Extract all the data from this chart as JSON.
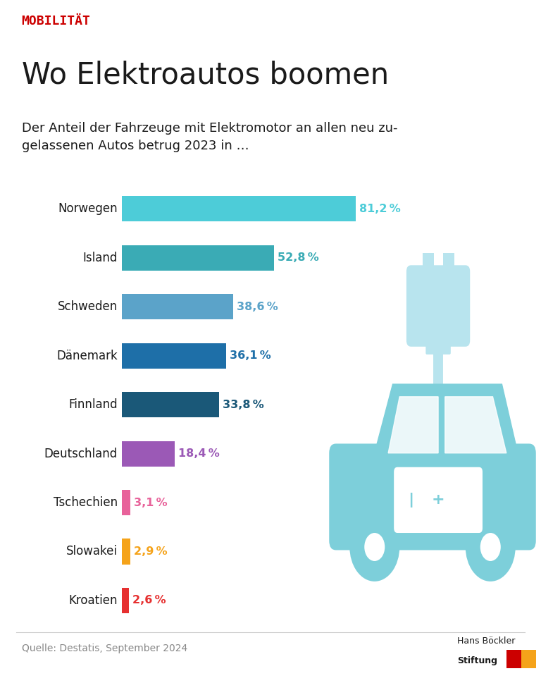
{
  "title_tag": "MOBILITÄT",
  "title": "Wo Elektroautos boomen",
  "subtitle_line1": "Der Anteil der Fahrzeuge mit Elektromotor an allen neu zu-",
  "subtitle_line2": "gelassenen Autos betrug 2023 in …",
  "categories": [
    "Norwegen",
    "Island",
    "Schweden",
    "Dänemark",
    "Finnland",
    "Deutschland",
    "Tschechien",
    "Slowakei",
    "Kroatien"
  ],
  "values": [
    81.2,
    52.8,
    38.6,
    36.1,
    33.8,
    18.4,
    3.1,
    2.9,
    2.6
  ],
  "labels": [
    "81,2 %",
    "52,8 %",
    "38,6 %",
    "36,1 %",
    "33,8 %",
    "18,4 %",
    "3,1 %",
    "2,9 %",
    "2,6 %"
  ],
  "bar_colors": [
    "#4DCCD8",
    "#3AABB5",
    "#5BA3C9",
    "#1E6FA8",
    "#1A5878",
    "#9B59B6",
    "#E8629A",
    "#F5A31A",
    "#E63030"
  ],
  "label_colors": [
    "#4DCCD8",
    "#3AABB5",
    "#5BA3C9",
    "#1E6FA8",
    "#1A5878",
    "#9B59B6",
    "#E8629A",
    "#F5A31A",
    "#E63030"
  ],
  "source": "Quelle: Destatis, September 2024",
  "bg_color": "#FFFFFF",
  "header_bg": "#D6ECF5",
  "bar_height": 0.52,
  "xlim": [
    0,
    90
  ],
  "title_tag_color": "#CC0000",
  "title_color": "#1A1A1A",
  "subtitle_color": "#1A1A1A",
  "source_color": "#888888",
  "car_color": "#7DCFDA",
  "car_color_dark": "#5BBFCC"
}
